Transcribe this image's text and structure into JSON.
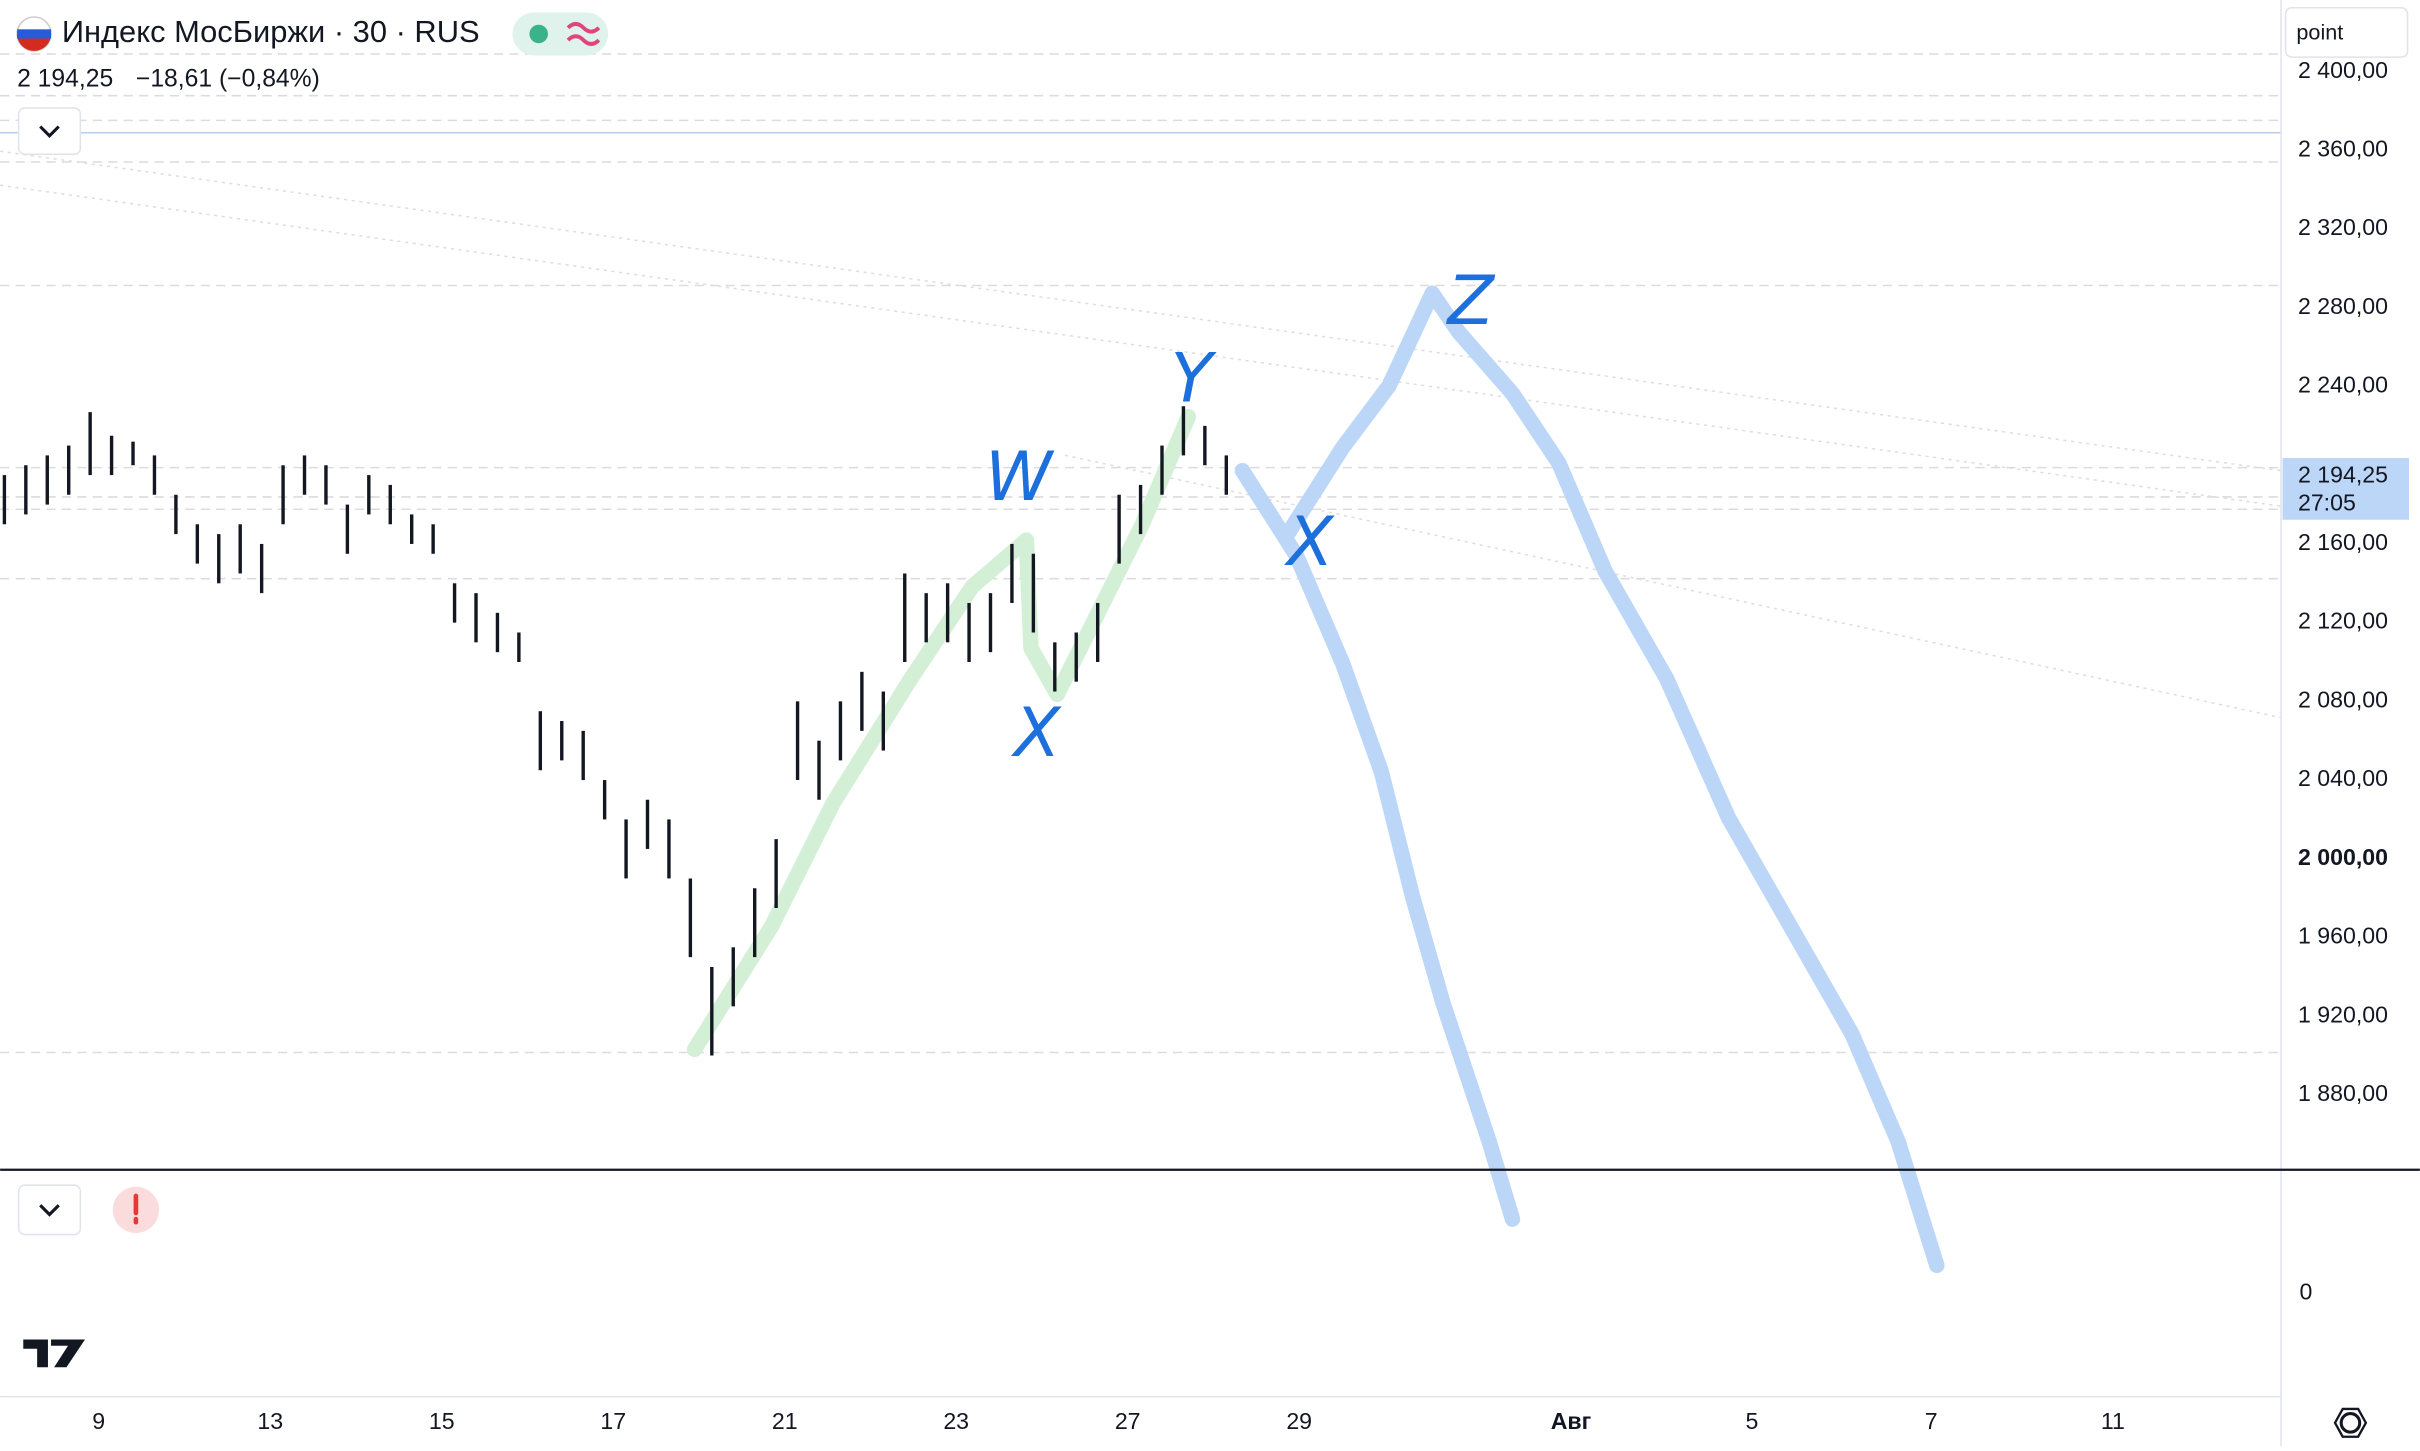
{
  "header": {
    "title": "Индекс МосБиржи · 30 · RUS",
    "price": "2 194,25",
    "change": "−18,61 (−0,84%)"
  },
  "toolbar": {
    "input": "point"
  },
  "chart_data": {
    "type": "ohlc",
    "color": "#131722",
    "x": [
      -1.1,
      -0.85,
      -0.6,
      -0.35,
      -0.1,
      0.15,
      0.4,
      0.65,
      0.9,
      1.15,
      1.4,
      1.65,
      1.9,
      2.15,
      2.4,
      2.65,
      2.9,
      3.15,
      3.4,
      3.65,
      3.9,
      4.15,
      4.4,
      4.65,
      4.9,
      5.15,
      5.4,
      5.65,
      5.9,
      6.15,
      6.4,
      6.65,
      6.9,
      7.15,
      7.4,
      7.65,
      7.9,
      8.15,
      8.4,
      8.65,
      8.9,
      9.15,
      9.4,
      9.65,
      9.9,
      10.15,
      10.4,
      10.65,
      10.9,
      11.15,
      11.4,
      11.65,
      11.9,
      12.15,
      12.4,
      12.65,
      12.9,
      13.15
    ],
    "high": [
      2195,
      2200,
      2205,
      2210,
      2227,
      2215,
      2212,
      2205,
      2185,
      2170,
      2165,
      2170,
      2160,
      2200,
      2205,
      2200,
      2180,
      2195,
      2190,
      2175,
      2170,
      2140,
      2135,
      2125,
      2115,
      2075,
      2070,
      2065,
      2040,
      2020,
      2030,
      2020,
      1990,
      1945,
      1955,
      1985,
      2010,
      2080,
      2060,
      2080,
      2095,
      2085,
      2145,
      2135,
      2140,
      2130,
      2135,
      2160,
      2155,
      2110,
      2115,
      2130,
      2185,
      2190,
      2210,
      2230,
      2220,
      2205
    ],
    "low": [
      2170,
      2175,
      2180,
      2185,
      2195,
      2195,
      2200,
      2185,
      2165,
      2150,
      2140,
      2145,
      2135,
      2170,
      2185,
      2180,
      2155,
      2175,
      2170,
      2160,
      2155,
      2120,
      2110,
      2105,
      2100,
      2045,
      2050,
      2040,
      2020,
      1990,
      2005,
      1990,
      1950,
      1900,
      1925,
      1950,
      1975,
      2040,
      2030,
      2050,
      2065,
      2055,
      2100,
      2110,
      2110,
      2100,
      2105,
      2130,
      2115,
      2085,
      2090,
      2100,
      2150,
      2165,
      2185,
      2205,
      2200,
      2185
    ],
    "xlim": [
      -1.15,
      25.45
    ],
    "ylim": [
      2409,
      1837
    ],
    "yticks": [
      {
        "value": 2400,
        "label": "2 400,00"
      },
      {
        "value": 2360,
        "label": "2 360,00"
      },
      {
        "value": 2320,
        "label": "2 320,00"
      },
      {
        "value": 2280,
        "label": "2 280,00"
      },
      {
        "value": 2240,
        "label": "2 240,00"
      },
      {
        "value": 2160,
        "label": "2 160,00"
      },
      {
        "value": 2120,
        "label": "2 120,00"
      },
      {
        "value": 2080,
        "label": "2 080,00"
      },
      {
        "value": 2040,
        "label": "2 040,00"
      },
      {
        "value": 2000,
        "label": "2 000,00"
      },
      {
        "value": 1960,
        "label": "1 960,00"
      },
      {
        "value": 1920,
        "label": "1 920,00"
      },
      {
        "value": 1880,
        "label": "1 880,00"
      }
    ],
    "xticks": [
      {
        "value": 0,
        "label": "9"
      },
      {
        "value": 2,
        "label": "13"
      },
      {
        "value": 4,
        "label": "15"
      },
      {
        "value": 6,
        "label": "17"
      },
      {
        "value": 8,
        "label": "21"
      },
      {
        "value": 10,
        "label": "23"
      },
      {
        "value": 12,
        "label": "27"
      },
      {
        "value": 14,
        "label": "29"
      },
      {
        "value": 17.17,
        "label": "Авг"
      },
      {
        "value": 19.28,
        "label": "5"
      },
      {
        "value": 21.37,
        "label": "7"
      },
      {
        "value": 23.49,
        "label": "11"
      }
    ],
    "last_price": {
      "value": 2194.25,
      "label": "2 194,25"
    },
    "countdown": "27:05",
    "annotations": [
      "W",
      "X",
      "Y",
      "X",
      "Z"
    ]
  },
  "lower_pane": {
    "yticks": [
      0
    ]
  }
}
